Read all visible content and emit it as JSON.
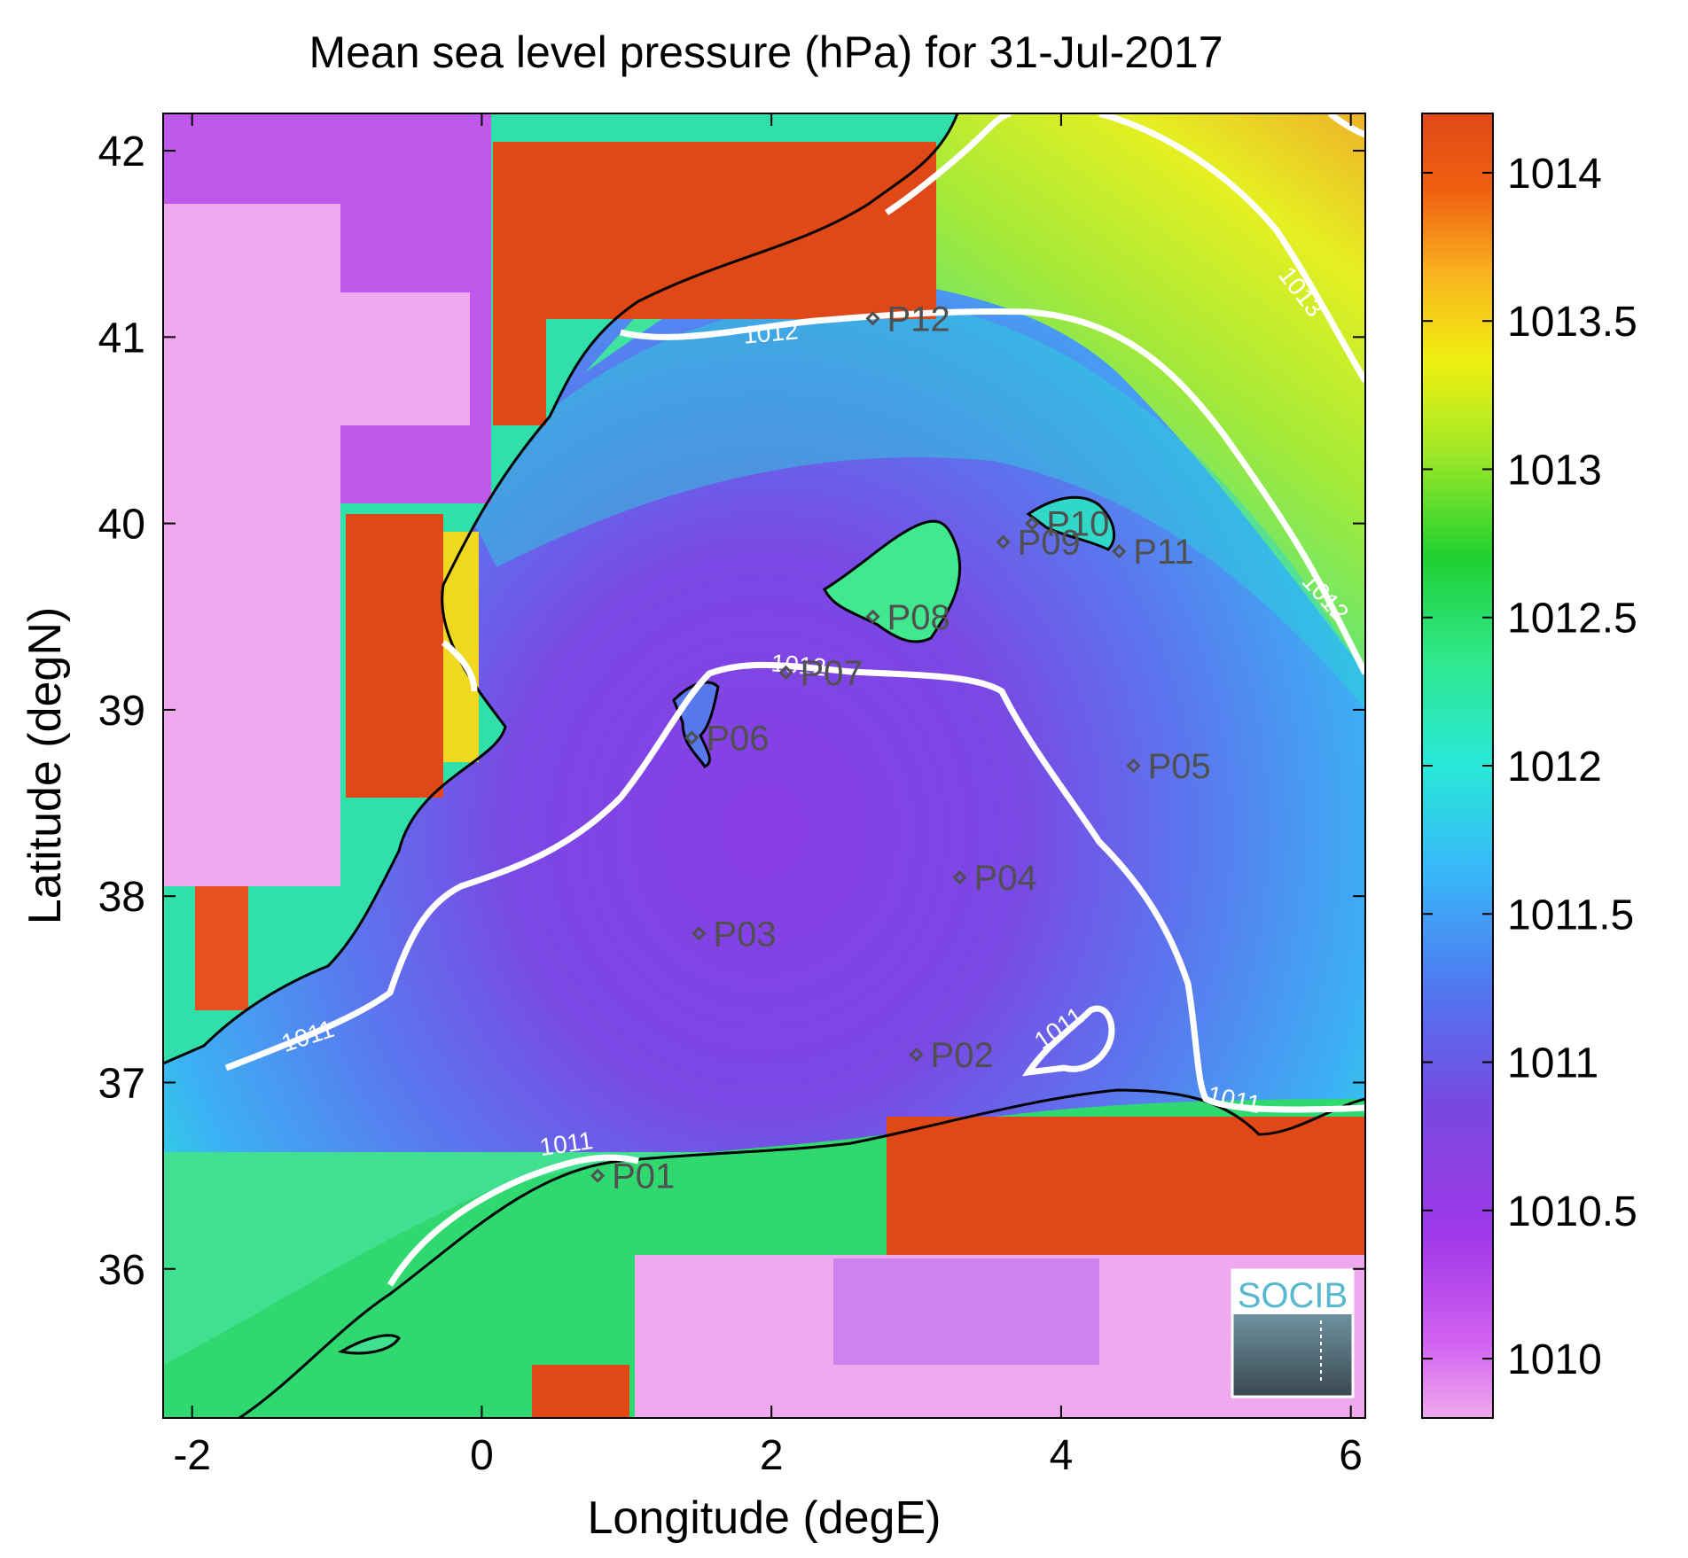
{
  "title": "Mean sea level pressure (hPa) for 31-Jul-2017",
  "xlabel": "Longitude (degE)",
  "ylabel": "Latitude (degN)",
  "colorbar": {
    "ticks": [
      "1014",
      "1013.5",
      "1013",
      "1012.5",
      "1012",
      "1011.5",
      "1011",
      "1010.5",
      "1010"
    ],
    "range": [
      1009.8,
      1014.2
    ],
    "colors": [
      "#f0a8ee",
      "#c040f0",
      "#7840e0",
      "#5070f0",
      "#38b0f8",
      "#28e8d8",
      "#30e890",
      "#20d030",
      "#a0e828",
      "#f0f010",
      "#f8b020",
      "#f06010",
      "#e04818"
    ]
  },
  "chart_data": {
    "type": "heatmap",
    "title": "Mean sea level pressure (hPa) for 31-Jul-2017",
    "xlabel": "Longitude (degE)",
    "ylabel": "Latitude (degN)",
    "xlim": [
      -2.2,
      6.1
    ],
    "ylim": [
      35.2,
      42.2
    ],
    "xticks": [
      "-2",
      "0",
      "2",
      "4",
      "6"
    ],
    "yticks": [
      "42",
      "41",
      "40",
      "39",
      "38",
      "37",
      "36"
    ],
    "contours": [
      {
        "level": "1011",
        "labels": [
          "1011",
          "1011",
          "1011",
          "1011"
        ]
      },
      {
        "level": "1012",
        "labels": [
          "1012",
          "1012",
          "1012"
        ]
      },
      {
        "level": "1013",
        "labels": [
          "1013"
        ]
      }
    ],
    "points": [
      {
        "name": "P01",
        "lon": 0.8,
        "lat": 36.5
      },
      {
        "name": "P02",
        "lon": 3.0,
        "lat": 37.15
      },
      {
        "name": "P03",
        "lon": 1.5,
        "lat": 37.8
      },
      {
        "name": "P04",
        "lon": 3.3,
        "lat": 38.1
      },
      {
        "name": "P05",
        "lon": 4.5,
        "lat": 38.7
      },
      {
        "name": "P06",
        "lon": 1.45,
        "lat": 38.85
      },
      {
        "name": "P07",
        "lon": 2.1,
        "lat": 39.2
      },
      {
        "name": "P08",
        "lon": 2.7,
        "lat": 39.5
      },
      {
        "name": "P09",
        "lon": 3.6,
        "lat": 39.9
      },
      {
        "name": "P10",
        "lon": 3.8,
        "lat": 40.0
      },
      {
        "name": "P11",
        "lon": 4.4,
        "lat": 39.85
      },
      {
        "name": "P12",
        "lon": 2.7,
        "lat": 41.1
      }
    ]
  },
  "logo": "SOCIB"
}
